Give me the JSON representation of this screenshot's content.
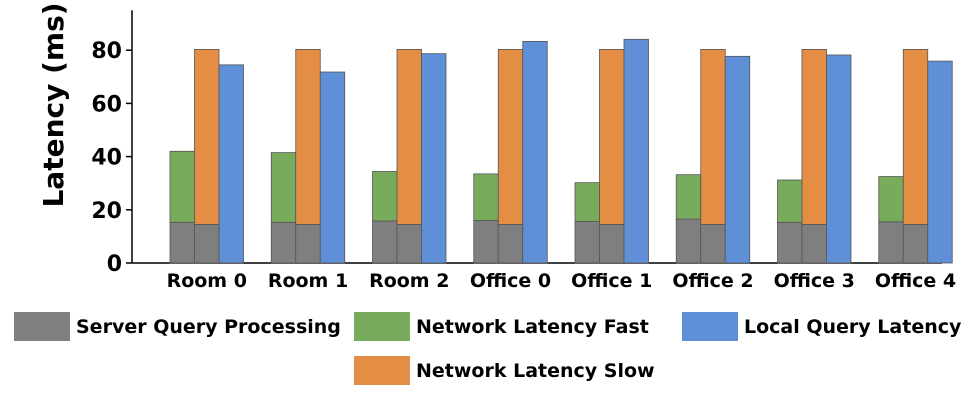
{
  "chart_data": {
    "type": "bar",
    "ylabel": "Latency (ms)",
    "xlabel": "",
    "ylim": [
      0,
      95
    ],
    "yticks": [
      0,
      20,
      40,
      60,
      80
    ],
    "categories": [
      "Room 0",
      "Room 1",
      "Room 2",
      "Office 0",
      "Office 1",
      "Office 2",
      "Office 3",
      "Office 4"
    ],
    "stacks": [
      {
        "series": [
          "Server Query Processing",
          "Network Latency Fast"
        ],
        "segments": [
          {
            "name": "Server Query Processing",
            "values": [
              15.3,
              15.3,
              15.8,
              16.0,
              15.6,
              16.5,
              15.3,
              15.5
            ]
          },
          {
            "name": "Network Latency Fast",
            "values": [
              26.7,
              26.2,
              18.6,
              17.5,
              14.6,
              16.7,
              15.9,
              17.0
            ]
          }
        ]
      },
      {
        "segments": [
          {
            "name": "Server Query Processing",
            "values": [
              14.5,
              14.5,
              14.5,
              14.5,
              14.5,
              14.5,
              14.5,
              14.5
            ]
          },
          {
            "name": "Network Latency Slow",
            "values": [
              65.8,
              65.8,
              65.8,
              65.8,
              65.8,
              65.8,
              65.8,
              65.8
            ]
          }
        ]
      },
      {
        "segments": [
          {
            "name": "Local Query Latency",
            "values": [
              74.5,
              71.8,
              78.7,
              83.3,
              84.1,
              77.7,
              78.2,
              75.9
            ]
          }
        ]
      }
    ],
    "legend": {
      "placement": "bottom",
      "entries": [
        {
          "name": "Server Query Processing",
          "color": "#7f7f7f"
        },
        {
          "name": "Network Latency Fast",
          "color": "#77ac5d"
        },
        {
          "name": "Local Query Latency",
          "color": "#5f8fd6"
        },
        {
          "name": "Network Latency Slow",
          "color": "#e48d45"
        }
      ]
    },
    "grid": false
  },
  "colors": {
    "Server Query Processing": "#7f7f7f",
    "Network Latency Fast": "#77ac5d",
    "Network Latency Slow": "#e48d45",
    "Local Query Latency": "#5f8fd6",
    "edge": "#555555"
  }
}
